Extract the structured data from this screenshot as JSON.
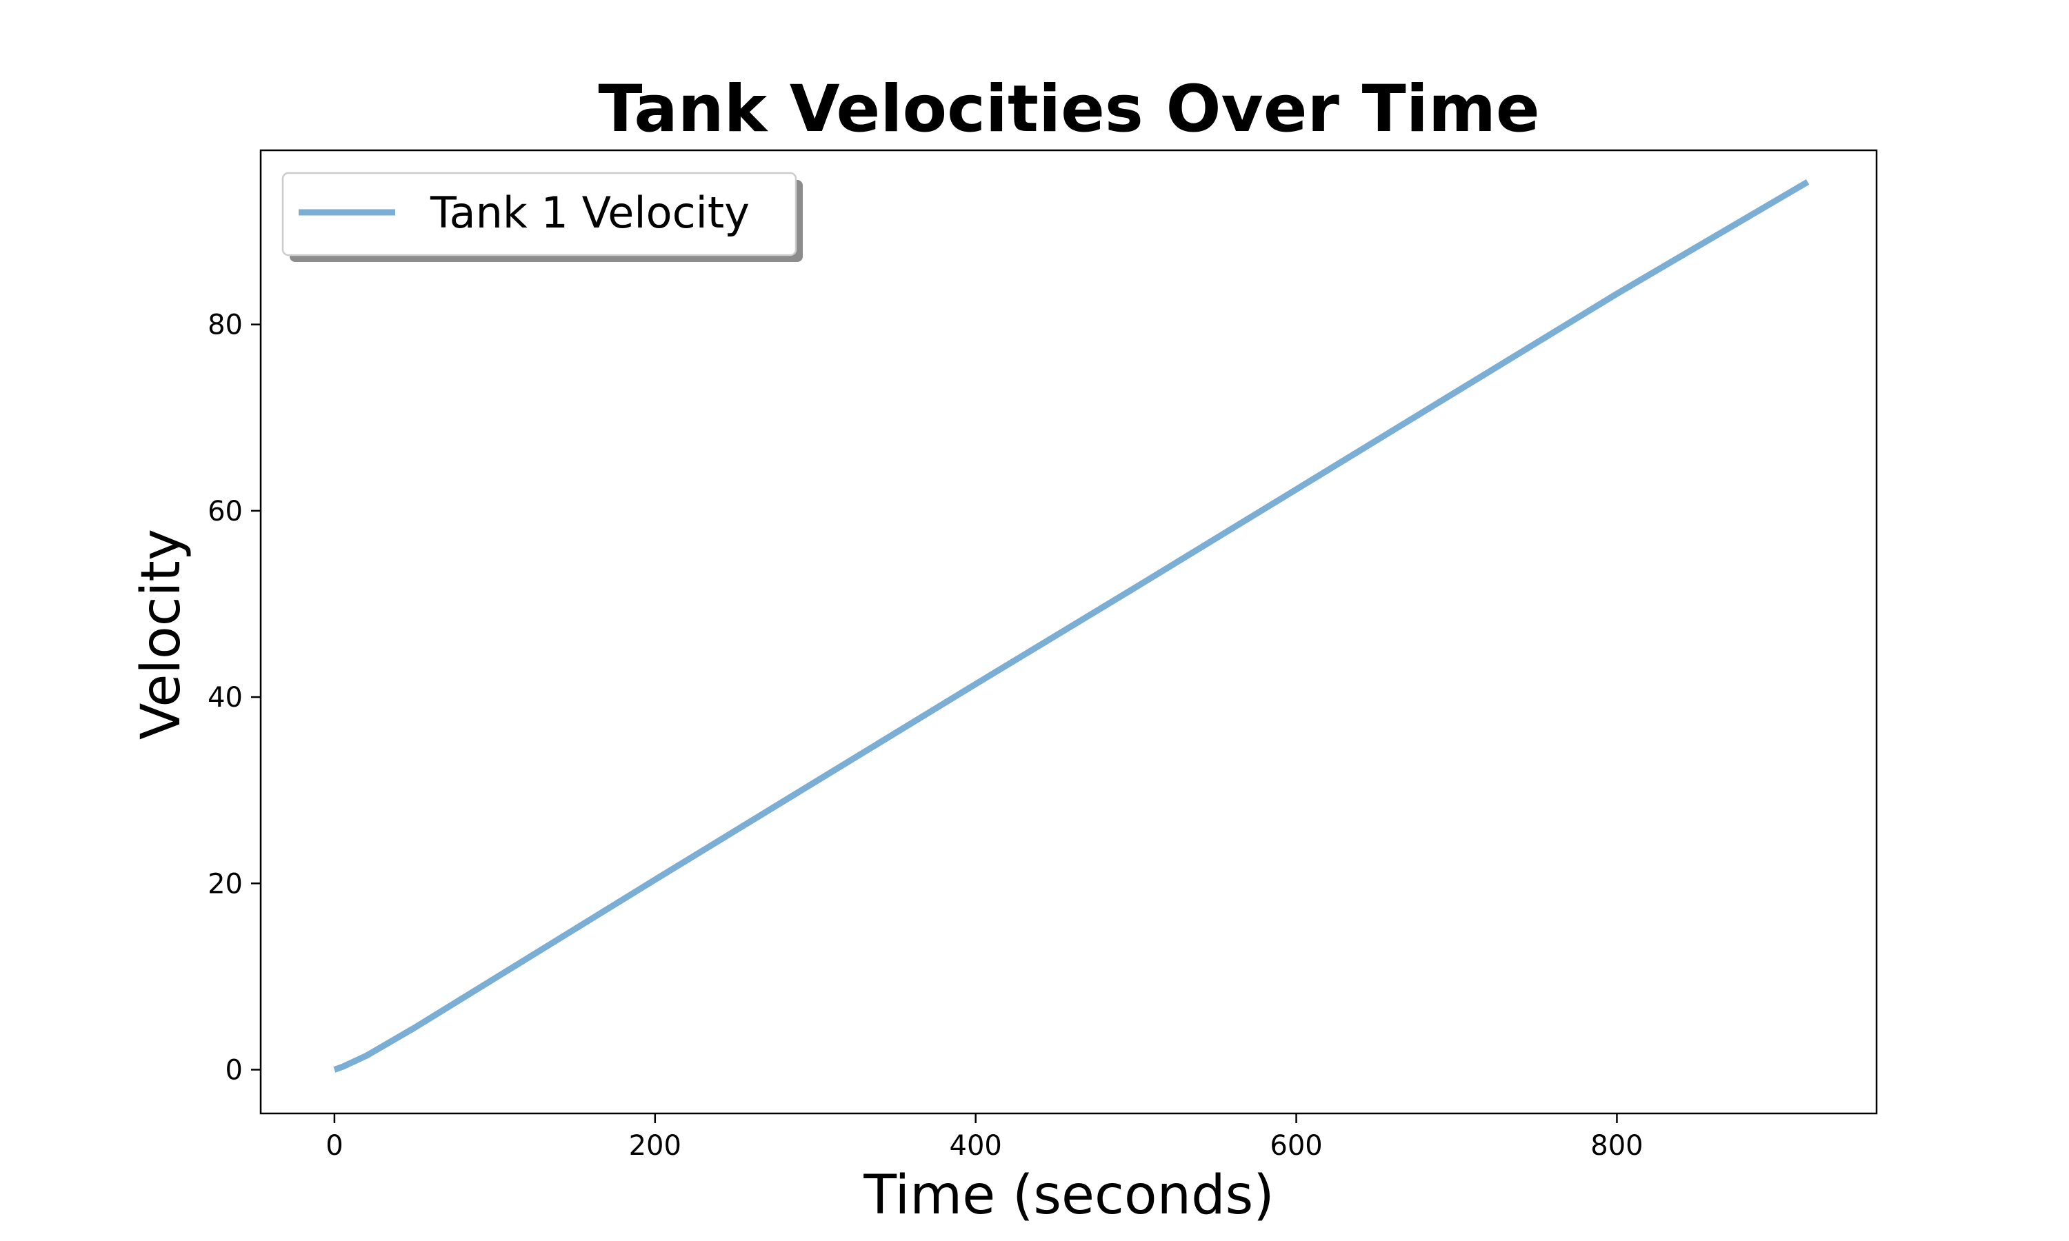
{
  "chart_data": {
    "type": "line",
    "title": "Tank Velocities Over Time",
    "xlabel": "Time (seconds)",
    "ylabel": "Velocity",
    "xlim": [
      -46,
      962
    ],
    "ylim": [
      -4.7,
      98.7
    ],
    "xticks": [
      0,
      200,
      400,
      600,
      800
    ],
    "yticks": [
      0,
      20,
      40,
      60,
      80
    ],
    "xtick_labels": [
      "0",
      "200",
      "400",
      "600",
      "800"
    ],
    "ytick_labels": [
      "0",
      "20",
      "40",
      "60",
      "80"
    ],
    "grid": false,
    "legend": {
      "position": "top-left",
      "shadow": true
    },
    "series": [
      {
        "name": "Tank 1 Velocity",
        "color": "#7aaed4",
        "x": [
          0,
          5,
          10,
          20,
          30,
          50,
          100,
          200,
          300,
          400,
          500,
          600,
          700,
          800,
          919
        ],
        "y": [
          0,
          0.3,
          0.7,
          1.5,
          2.5,
          4.5,
          9.8,
          20.4,
          30.9,
          41.4,
          51.8,
          62.3,
          72.8,
          83.3,
          95.3
        ]
      }
    ]
  }
}
